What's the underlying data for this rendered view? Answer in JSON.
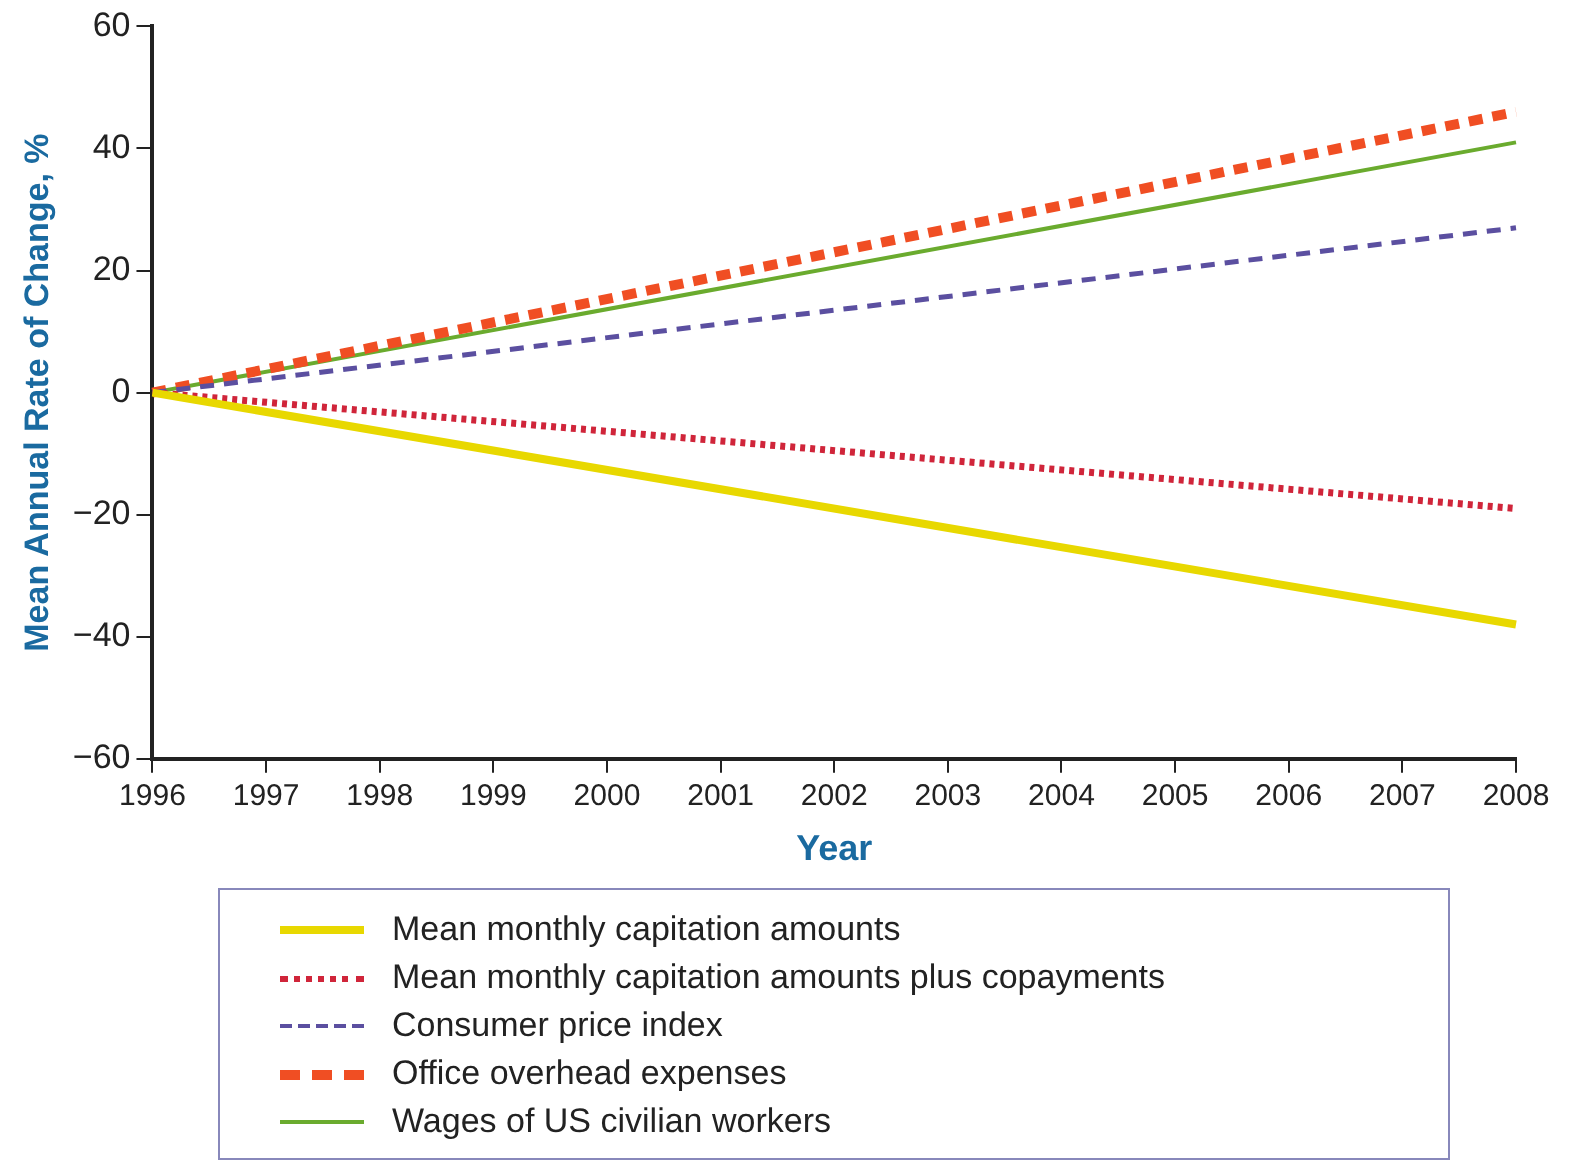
{
  "chart_data": {
    "type": "line",
    "xlabel": "Year",
    "ylabel": "Mean Annual Rate of Change, %",
    "xlim": [
      1996,
      2008
    ],
    "xticks": [
      1996,
      1997,
      1998,
      1999,
      2000,
      2001,
      2002,
      2003,
      2004,
      2005,
      2006,
      2007,
      2008
    ],
    "ylim": [
      -60,
      60
    ],
    "yticks": [
      -60,
      -40,
      -20,
      0,
      20,
      40,
      60
    ],
    "grid": false,
    "legend": "bottom",
    "marker": "none",
    "x": [
      1996,
      2008
    ],
    "series": [
      {
        "name": "Mean monthly capitation amounts",
        "color": "#e8d800",
        "line_style": "solid",
        "values": [
          0,
          -38
        ]
      },
      {
        "name": "Mean monthly capitation amounts plus copayments",
        "color": "#d0253a",
        "line_style": "dotted",
        "values": [
          0,
          -19
        ]
      },
      {
        "name": "Consumer price index",
        "color": "#5b4fa0",
        "line_style": "dashed",
        "values": [
          0,
          27
        ]
      },
      {
        "name": "Office overhead expenses",
        "color": "#f04e23",
        "line_style": "dashed",
        "values": [
          0,
          46
        ]
      },
      {
        "name": "Wages of US civilian workers",
        "color": "#6aab2e",
        "line_style": "solid",
        "values": [
          0,
          41
        ]
      }
    ]
  }
}
